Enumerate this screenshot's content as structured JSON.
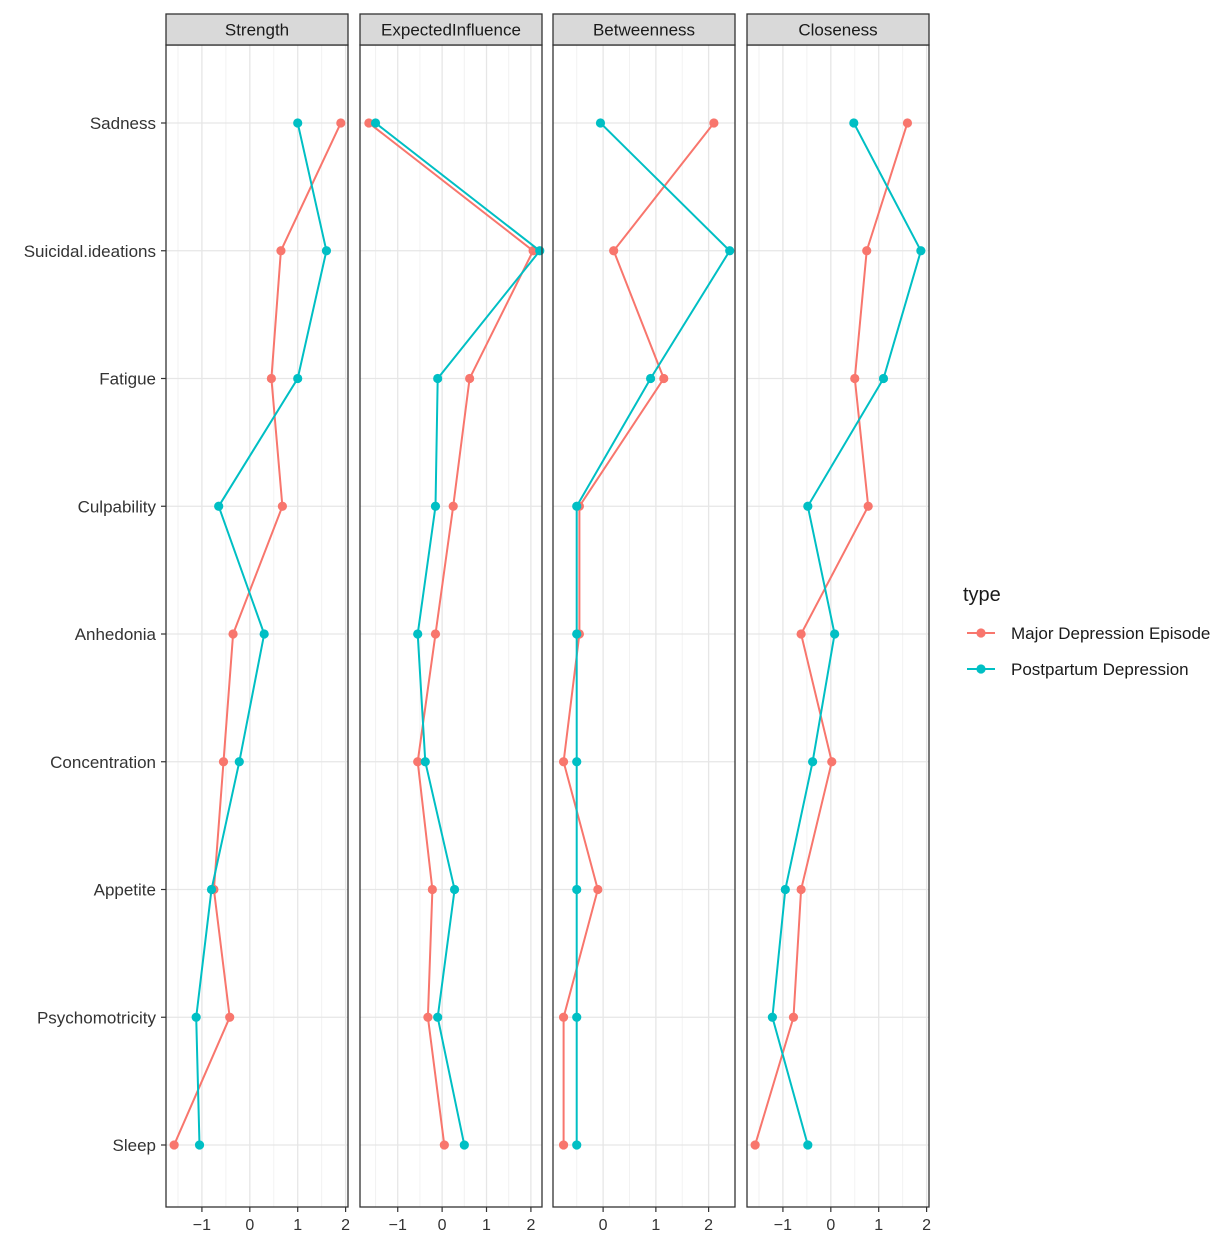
{
  "chart_data": {
    "type": "line",
    "facets": [
      "Strength",
      "ExpectedInfluence",
      "Betweenness",
      "Closeness"
    ],
    "categories": [
      "Sadness",
      "Suicidal.ideations",
      "Fatigue",
      "Culpability",
      "Anhedonia",
      "Concentration",
      "Appetite",
      "Psychomotricity",
      "Sleep"
    ],
    "x_ticks": [
      -1,
      0,
      1,
      2
    ],
    "xlims": {
      "Strength": [
        -1.75,
        2.05
      ],
      "ExpectedInfluence": [
        -1.85,
        2.25
      ],
      "Betweenness": [
        -0.95,
        2.5
      ],
      "Closeness": [
        -1.75,
        2.05
      ]
    },
    "series": [
      {
        "name": "Major Depression Episode",
        "color": "#F8766D",
        "values": {
          "Strength": [
            1.9,
            0.65,
            0.45,
            0.68,
            -0.35,
            -0.55,
            -0.75,
            -0.42,
            -1.58
          ],
          "ExpectedInfluence": [
            -1.65,
            2.05,
            0.62,
            0.25,
            -0.15,
            -0.55,
            -0.22,
            -0.32,
            0.05
          ],
          "Betweenness": [
            2.1,
            0.2,
            1.15,
            -0.45,
            -0.45,
            -0.75,
            -0.1,
            -0.75,
            -0.75
          ],
          "Closeness": [
            1.6,
            0.75,
            0.5,
            0.78,
            -0.62,
            0.02,
            -0.62,
            -0.78,
            -1.58
          ]
        }
      },
      {
        "name": "Postpartum Depression",
        "color": "#00BFC4",
        "values": {
          "Strength": [
            1.0,
            1.6,
            1.0,
            -0.65,
            0.3,
            -0.22,
            -0.8,
            -1.12,
            -1.05
          ],
          "ExpectedInfluence": [
            -1.5,
            2.2,
            -0.1,
            -0.15,
            -0.55,
            -0.38,
            0.28,
            -0.1,
            0.5
          ],
          "Betweenness": [
            -0.05,
            2.4,
            0.9,
            -0.5,
            -0.5,
            -0.5,
            -0.5,
            -0.5,
            -0.5
          ],
          "Closeness": [
            0.48,
            1.88,
            1.1,
            -0.48,
            0.08,
            -0.38,
            -0.95,
            -1.22,
            -0.48
          ]
        }
      }
    ],
    "legend": {
      "title": "type",
      "position": "right"
    },
    "grid": true
  }
}
